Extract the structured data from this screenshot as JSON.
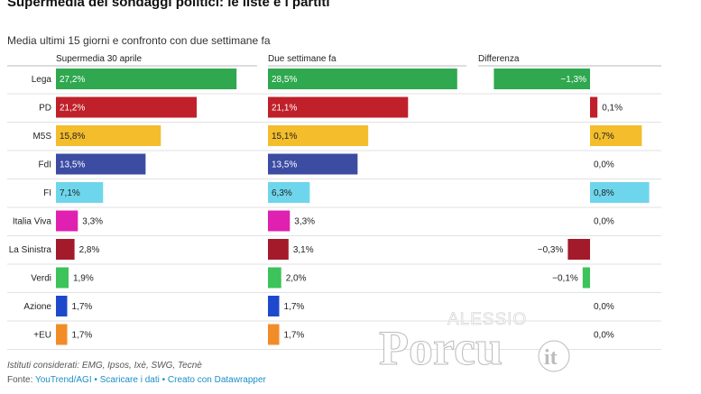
{
  "title": "Supermedia dei sondaggi politici: le liste e i partiti",
  "subtitle": "Media ultimi 15 giorni e confronto con due settimane fa",
  "chart_data": {
    "type": "bar",
    "categories": [
      "Lega",
      "PD",
      "M5S",
      "FdI",
      "FI",
      "Italia Viva",
      "La Sinistra",
      "Verdi",
      "Azione",
      "+EU"
    ],
    "colors": [
      "#2fa84f",
      "#c0202a",
      "#f3bd2c",
      "#3c4ca3",
      "#6ed6ec",
      "#e020b0",
      "#a31a2a",
      "#3cc35a",
      "#1f49cc",
      "#f28c28"
    ],
    "series": [
      {
        "name": "Supermedia 30 aprile",
        "values": [
          27.2,
          21.2,
          15.8,
          13.5,
          7.1,
          3.3,
          2.8,
          1.9,
          1.7,
          1.7
        ],
        "labels": [
          "27,2%",
          "21,2%",
          "15,8%",
          "13,5%",
          "7,1%",
          "3,3%",
          "2,8%",
          "1,9%",
          "1,7%",
          "1,7%"
        ]
      },
      {
        "name": "Due settimane fa",
        "values": [
          28.5,
          21.1,
          15.1,
          13.5,
          6.3,
          3.3,
          3.1,
          2.0,
          1.7,
          1.7
        ],
        "labels": [
          "28,5%",
          "21,1%",
          "15,1%",
          "13,5%",
          "6,3%",
          "3,3%",
          "3,1%",
          "2,0%",
          "1,7%",
          "1,7%"
        ]
      },
      {
        "name": "Differenza",
        "values": [
          -1.3,
          0.1,
          0.7,
          0.0,
          0.8,
          0.0,
          -0.3,
          -0.1,
          0.0,
          0.0
        ],
        "labels": [
          "−1,3%",
          "0,1%",
          "0,7%",
          "0,0%",
          "0,8%",
          "0,0%",
          "−0,3%",
          "−0,1%",
          "0,0%",
          "0,0%"
        ]
      }
    ]
  },
  "footer": {
    "notes": "Istituti considerati: EMG, Ipsos, Ixè, SWG, Tecnè",
    "source_prefix": "Fonte:",
    "source_link": "YouTrend/AGI",
    "separator": "•",
    "download_link": "Scaricare i dati",
    "created_link": "Creato con Datawrapper"
  },
  "watermark": {
    "top": "ALESSIO",
    "name": "Porcu",
    "suffix": "it"
  }
}
